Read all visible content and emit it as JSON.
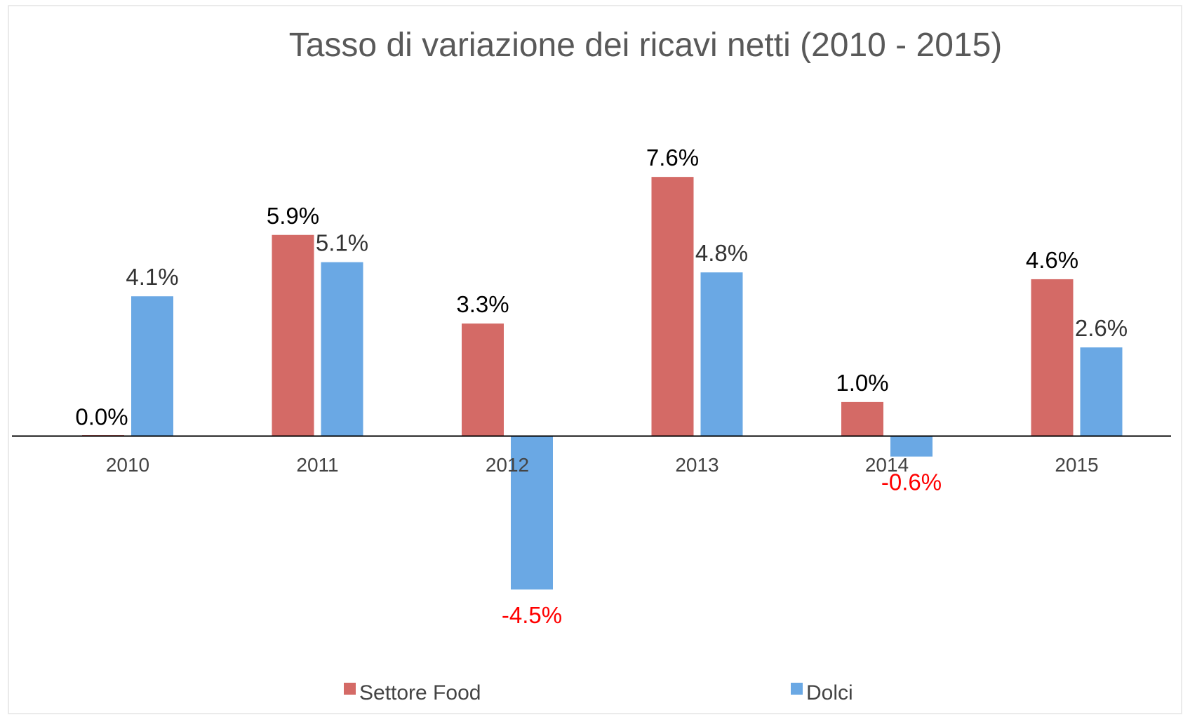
{
  "chart_data": {
    "type": "bar",
    "title": "Tasso di variazione dei ricavi netti (2010 - 2015)",
    "categories": [
      "2010",
      "2011",
      "2012",
      "2013",
      "2014",
      "2015"
    ],
    "series": [
      {
        "name": "Settore Food",
        "color": "#d46a66",
        "values": [
          0.0,
          5.9,
          3.3,
          7.6,
          1.0,
          4.6
        ],
        "value_labels": [
          "0.0%",
          "5.9%",
          "3.3%",
          "7.6%",
          "1.0%",
          "4.6%"
        ]
      },
      {
        "name": "Dolci",
        "color": "#6aa8e4",
        "values": [
          4.1,
          5.1,
          -4.5,
          4.8,
          -0.6,
          2.6
        ],
        "value_labels": [
          "4.1%",
          "5.1%",
          "-4.5%",
          "4.8%",
          "-0.6%",
          "2.6%"
        ]
      }
    ],
    "negative_label_color": "#ff0000",
    "legend": "bottom"
  }
}
